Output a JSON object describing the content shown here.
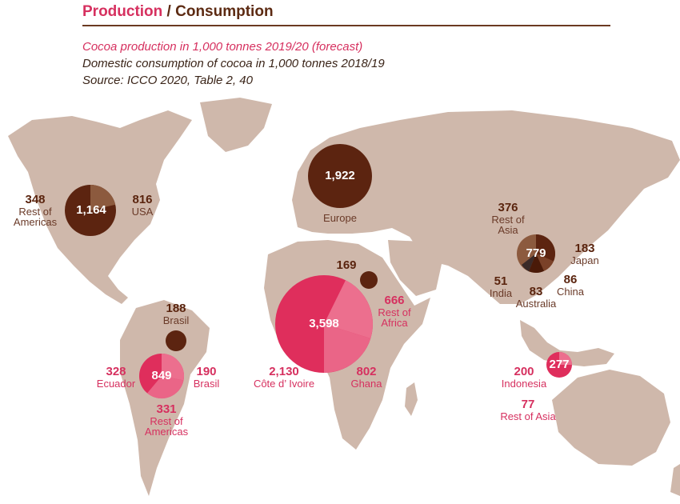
{
  "header": {
    "title_production": "Production",
    "title_separator": " / ",
    "title_consumption": "Consumption",
    "subtitle_production": "Cocoa production in 1,000 tonnes 2019/20 (forecast)",
    "subtitle_consumption": "Domestic consumption of cocoa in 1,000 tonnes 2018/19",
    "source": "Source: ICCO 2020, Table 2, 40"
  },
  "colors": {
    "land": "#cfb8ab",
    "consumption_dark": "#5c2410",
    "consumption_light": "#8c5a3e",
    "production_dark": "#df2e5c",
    "production_light": "#ec6f8e",
    "rule": "#6b3a22"
  },
  "chart_data": {
    "type": "map-bubbles",
    "consumption": [
      {
        "region": "North America",
        "total": "1,164",
        "parts": [
          {
            "value": "348",
            "label_line1": "Rest of",
            "label_line2": "Americas"
          },
          {
            "value": "816",
            "label_line1": "USA",
            "label_line2": ""
          }
        ]
      },
      {
        "region": "Europe",
        "total": "1,922",
        "label": "Europe"
      },
      {
        "region": "Africa",
        "value": "169"
      },
      {
        "region": "South America",
        "value": "188",
        "label": "Brasil"
      },
      {
        "region": "Asia",
        "total": "779",
        "parts": [
          {
            "value": "376",
            "label_line1": "Rest of",
            "label_line2": "Asia"
          },
          {
            "value": "183",
            "label_line1": "Japan",
            "label_line2": ""
          },
          {
            "value": "86",
            "label_line1": "China",
            "label_line2": ""
          },
          {
            "value": "83",
            "label_line1": "Australia",
            "label_line2": ""
          },
          {
            "value": "51",
            "label_line1": "India",
            "label_line2": ""
          }
        ]
      }
    ],
    "production": [
      {
        "region": "Africa",
        "total": "3,598",
        "parts": [
          {
            "value": "2,130",
            "label_line1": "Côte d’ Ivoire",
            "label_line2": ""
          },
          {
            "value": "802",
            "label_line1": "Ghana",
            "label_line2": ""
          },
          {
            "value": "666",
            "label_line1": "Rest of",
            "label_line2": "Africa"
          }
        ]
      },
      {
        "region": "Americas",
        "total": "849",
        "parts": [
          {
            "value": "328",
            "label_line1": "Ecuador",
            "label_line2": ""
          },
          {
            "value": "190",
            "label_line1": "Brasil",
            "label_line2": ""
          },
          {
            "value": "331",
            "label_line1": "Rest of",
            "label_line2": "Americas"
          }
        ]
      },
      {
        "region": "Asia",
        "total": "277",
        "parts": [
          {
            "value": "200",
            "label_line1": "Indonesia",
            "label_line2": ""
          },
          {
            "value": "77",
            "label_line1": "Rest of Asia",
            "label_line2": ""
          }
        ]
      }
    ]
  }
}
